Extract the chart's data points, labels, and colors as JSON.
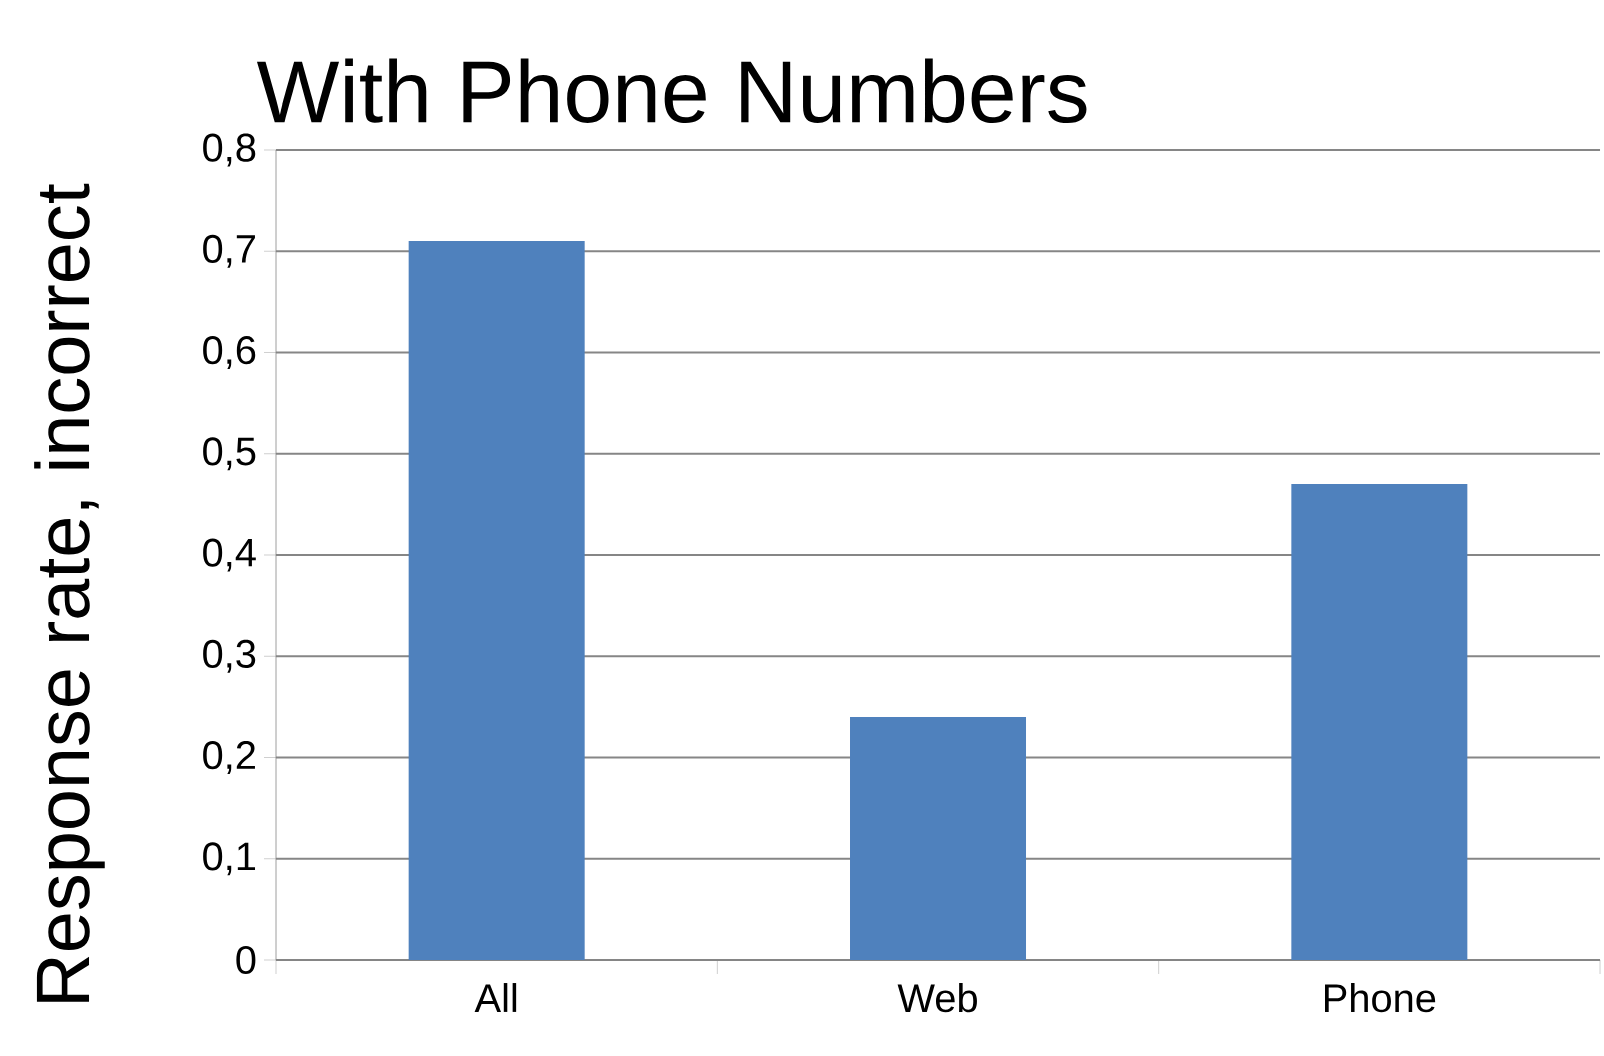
{
  "chart_data": {
    "type": "bar",
    "title": "With Phone Numbers",
    "ylabel": "Response rate, incorrect",
    "categories": [
      "All",
      "Web",
      "Phone"
    ],
    "values": [
      0.71,
      0.24,
      0.47
    ],
    "color": "#4f81bd",
    "ylim": [
      0,
      0.8
    ],
    "yticks": [
      0,
      {
        "value": 0.1,
        "label": "0,1"
      },
      {
        "value": 0.2,
        "label": "0,2"
      },
      {
        "value": 0.3,
        "label": "0,3"
      },
      {
        "value": 0.4,
        "label": "0,4"
      },
      {
        "value": 0.5,
        "label": "0,5"
      },
      {
        "value": 0.6,
        "label": "0,6"
      },
      {
        "value": 0.7,
        "label": "0,7"
      },
      {
        "value": 0.8,
        "label": "0,8"
      }
    ],
    "grid": "y"
  }
}
